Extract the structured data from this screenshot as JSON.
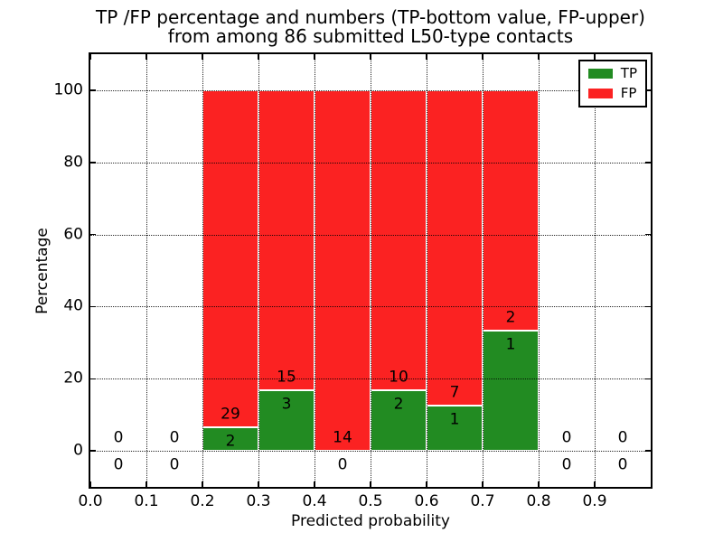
{
  "chart_data": {
    "type": "bar",
    "stacked": true,
    "units": "percent",
    "title_line1": "TP /FP percentage and numbers (TP-bottom value, FP-upper)",
    "title_line2": "from among 86 submitted L50-type contacts",
    "xlabel": "Predicted probability",
    "ylabel": "Percentage",
    "total_submitted_contacts": 86,
    "grid": "dotted",
    "xlim": [
      0.0,
      1.0
    ],
    "ylim": [
      -10,
      110
    ],
    "xticks": [
      {
        "v": 0.0,
        "label": "0.0"
      },
      {
        "v": 0.1,
        "label": "0.1"
      },
      {
        "v": 0.2,
        "label": "0.2"
      },
      {
        "v": 0.3,
        "label": "0.3"
      },
      {
        "v": 0.4,
        "label": "0.4"
      },
      {
        "v": 0.5,
        "label": "0.5"
      },
      {
        "v": 0.6,
        "label": "0.6"
      },
      {
        "v": 0.7,
        "label": "0.7"
      },
      {
        "v": 0.8,
        "label": "0.8"
      },
      {
        "v": 0.9,
        "label": "0.9"
      }
    ],
    "yticks": [
      {
        "v": 0,
        "label": "0"
      },
      {
        "v": 20,
        "label": "20"
      },
      {
        "v": 40,
        "label": "40"
      },
      {
        "v": 60,
        "label": "60"
      },
      {
        "v": 80,
        "label": "80"
      },
      {
        "v": 100,
        "label": "100"
      }
    ],
    "colors": {
      "tp": "#228B22",
      "fp": "#FB2222"
    },
    "legend": {
      "position": "upper right",
      "entries": [
        {
          "label": "TP",
          "color": "#228B22"
        },
        {
          "label": "FP",
          "color": "#FB2222"
        }
      ]
    },
    "bins": [
      {
        "x0": 0.0,
        "x1": 0.1,
        "tp_count": 0,
        "fp_count": 0,
        "tp_pct": 0,
        "fp_pct": 0
      },
      {
        "x0": 0.1,
        "x1": 0.2,
        "tp_count": 0,
        "fp_count": 0,
        "tp_pct": 0,
        "fp_pct": 0
      },
      {
        "x0": 0.2,
        "x1": 0.3,
        "tp_count": 2,
        "fp_count": 29,
        "tp_pct": 6.5,
        "fp_pct": 93.5
      },
      {
        "x0": 0.3,
        "x1": 0.4,
        "tp_count": 3,
        "fp_count": 15,
        "tp_pct": 16.7,
        "fp_pct": 83.3
      },
      {
        "x0": 0.4,
        "x1": 0.5,
        "tp_count": 0,
        "fp_count": 14,
        "tp_pct": 0,
        "fp_pct": 100
      },
      {
        "x0": 0.5,
        "x1": 0.6,
        "tp_count": 2,
        "fp_count": 10,
        "tp_pct": 16.7,
        "fp_pct": 83.3
      },
      {
        "x0": 0.6,
        "x1": 0.7,
        "tp_count": 1,
        "fp_count": 7,
        "tp_pct": 12.5,
        "fp_pct": 87.5
      },
      {
        "x0": 0.7,
        "x1": 0.8,
        "tp_count": 1,
        "fp_count": 2,
        "tp_pct": 33.3,
        "fp_pct": 66.7
      },
      {
        "x0": 0.8,
        "x1": 0.9,
        "tp_count": 0,
        "fp_count": 0,
        "tp_pct": 0,
        "fp_pct": 0
      },
      {
        "x0": 0.9,
        "x1": 1.0,
        "tp_count": 0,
        "fp_count": 0,
        "tp_pct": 0,
        "fp_pct": 0
      }
    ]
  }
}
